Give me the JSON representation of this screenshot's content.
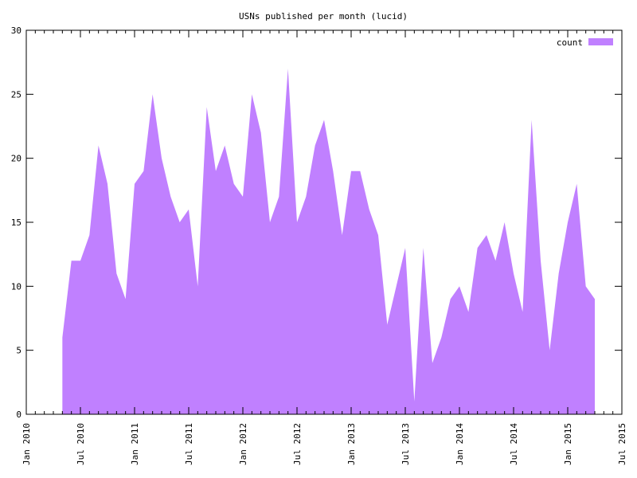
{
  "chart_data": {
    "type": "area",
    "title": "USNs published per month (lucid)",
    "xlabel": "",
    "ylabel": "",
    "xlim": [
      "2010-01",
      "2015-07"
    ],
    "ylim": [
      0,
      30
    ],
    "x_ticks": [
      "2010-01",
      "2010-07",
      "2011-01",
      "2011-07",
      "2012-01",
      "2012-07",
      "2013-01",
      "2013-07",
      "2014-01",
      "2014-07",
      "2015-01",
      "2015-07"
    ],
    "x_tick_labels": [
      "Jan 2010",
      "Jul 2010",
      "Jan 2011",
      "Jul 2011",
      "Jan 2012",
      "Jul 2012",
      "Jan 2013",
      "Jul 2013",
      "Jan 2014",
      "Jul 2014",
      "Jan 2015",
      "Jul 2015"
    ],
    "y_ticks": [
      0,
      5,
      10,
      15,
      20,
      25,
      30
    ],
    "y_tick_labels": [
      "0",
      "5",
      "10",
      "15",
      "20",
      "25",
      "30"
    ],
    "grid": false,
    "legend_position": "top-right",
    "color": "#c080ff",
    "series": [
      {
        "name": "count",
        "x": [
          "2010-05",
          "2010-06",
          "2010-07",
          "2010-08",
          "2010-09",
          "2010-10",
          "2010-11",
          "2010-12",
          "2011-01",
          "2011-02",
          "2011-03",
          "2011-04",
          "2011-05",
          "2011-06",
          "2011-07",
          "2011-08",
          "2011-09",
          "2011-10",
          "2011-11",
          "2011-12",
          "2012-01",
          "2012-02",
          "2012-03",
          "2012-04",
          "2012-05",
          "2012-06",
          "2012-07",
          "2012-08",
          "2012-09",
          "2012-10",
          "2012-11",
          "2012-12",
          "2013-01",
          "2013-02",
          "2013-03",
          "2013-04",
          "2013-05",
          "2013-06",
          "2013-07",
          "2013-08",
          "2013-09",
          "2013-10",
          "2013-11",
          "2013-12",
          "2014-01",
          "2014-02",
          "2014-03",
          "2014-04",
          "2014-05",
          "2014-06",
          "2014-07",
          "2014-08",
          "2014-09",
          "2014-10",
          "2014-11",
          "2014-12",
          "2015-01",
          "2015-02",
          "2015-03",
          "2015-04"
        ],
        "values": [
          6,
          12,
          12,
          14,
          21,
          18,
          11,
          9,
          18,
          19,
          25,
          20,
          17,
          15,
          16,
          10,
          24,
          19,
          21,
          18,
          17,
          25,
          22,
          15,
          17,
          27,
          15,
          17,
          21,
          23,
          19,
          14,
          19,
          19,
          16,
          14,
          7,
          10,
          13,
          1,
          13,
          4,
          6,
          9,
          10,
          8,
          13,
          14,
          12,
          15,
          11,
          8,
          23,
          12,
          5,
          11,
          15,
          18,
          10,
          9
        ]
      }
    ]
  }
}
